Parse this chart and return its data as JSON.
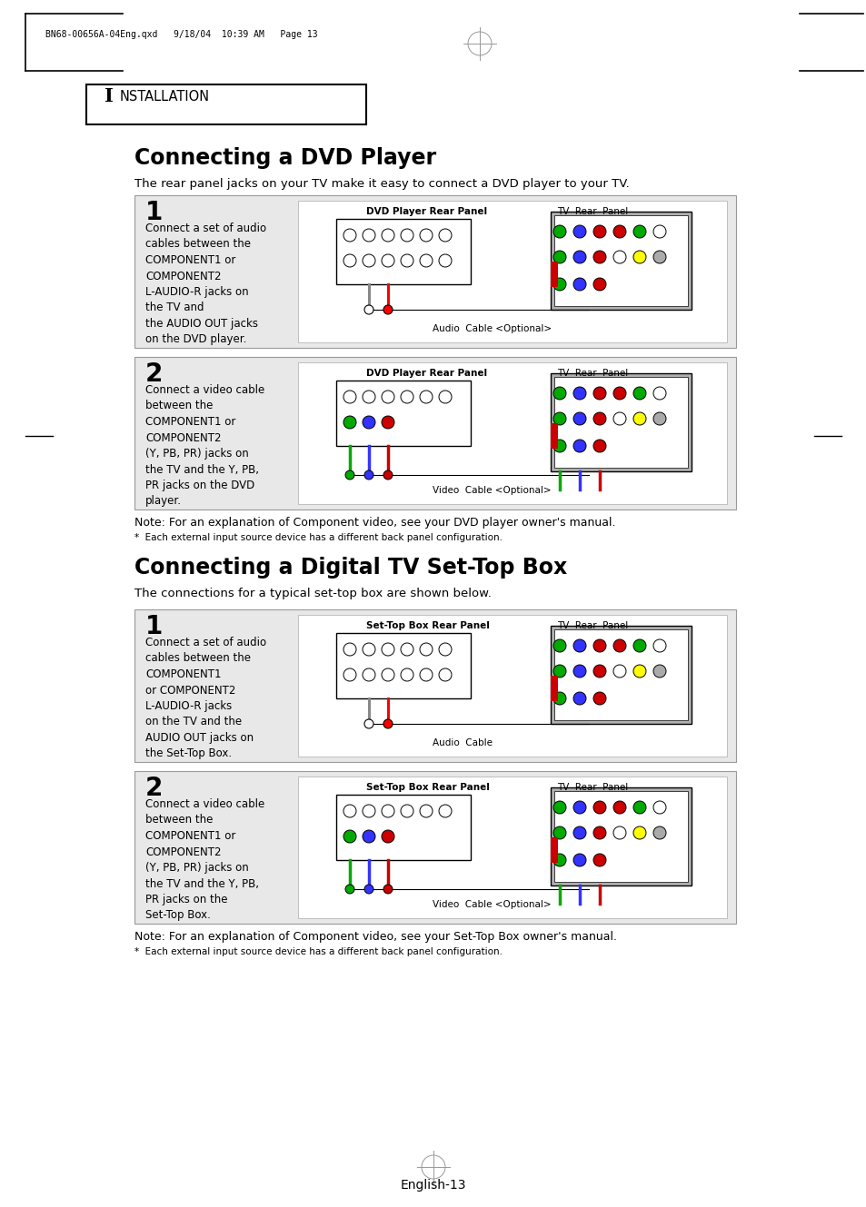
{
  "bg_color": "#ffffff",
  "header_text": "BN68-00656A-04Eng.qxd   9/18/04  10:39 AM   Page 13",
  "section_label_I": "I",
  "section_label_rest": "NSTALLATION",
  "title1": "Connecting a DVD Player",
  "subtitle1": "The rear panel jacks on your TV make it easy to connect a DVD player to your TV.",
  "title2": "Connecting a Digital TV Set-Top Box",
  "subtitle2": "The connections for a typical set-top box are shown below.",
  "box1_num": "1",
  "box1_text": "Connect a set of audio\ncables between the\nCOMPONENT1 or\nCOMPONENT2\nL-AUDIO-R jacks on\nthe TV and\nthe AUDIO OUT jacks\non the DVD player.",
  "box1_left_label": "DVD Player Rear Panel",
  "box1_right_label": "TV  Rear  Panel",
  "box1_cable_label": "Audio  Cable <Optional>",
  "box2_num": "2",
  "box2_text": "Connect a video cable\nbetween the\nCOMPONENT1 or\nCOMPONENT2\n(Y, PB, PR) jacks on\nthe TV and the Y, PB,\nPR jacks on the DVD\nplayer.",
  "box2_left_label": "DVD Player Rear Panel",
  "box2_right_label": "TV  Rear  Panel",
  "box2_cable_label": "Video  Cable <Optional>",
  "note1": "Note: For an explanation of Component video, see your DVD player owner's manual.",
  "asterisk1": "*  Each external input source device has a different back panel configuration.",
  "box3_num": "1",
  "box3_text": "Connect a set of audio\ncables between the\nCOMPONENT1\nor COMPONENT2\nL-AUDIO-R jacks\non the TV and the\nAUDIO OUT jacks on\nthe Set-Top Box.",
  "box3_left_label": "Set-Top Box Rear Panel",
  "box3_right_label": "TV  Rear  Panel",
  "box3_cable_label": "Audio  Cable",
  "box4_num": "2",
  "box4_text": "Connect a video cable\nbetween the\nCOMPONENT1 or\nCOMPONENT2\n(Y, PB, PR) jacks on\nthe TV and the Y, PB,\nPR jacks on the\nSet-Top Box.",
  "box4_left_label": "Set-Top Box Rear Panel",
  "box4_right_label": "TV  Rear  Panel",
  "box4_cable_label": "Video  Cable <Optional>",
  "note2": "Note: For an explanation of Component video, see your Set-Top Box owner's manual.",
  "asterisk2": "*  Each external input source device has a different back panel configuration.",
  "page_num": "English-13",
  "diagram_bg": "#e8e8e8",
  "tv_panel_bg": "#b0b0b0"
}
